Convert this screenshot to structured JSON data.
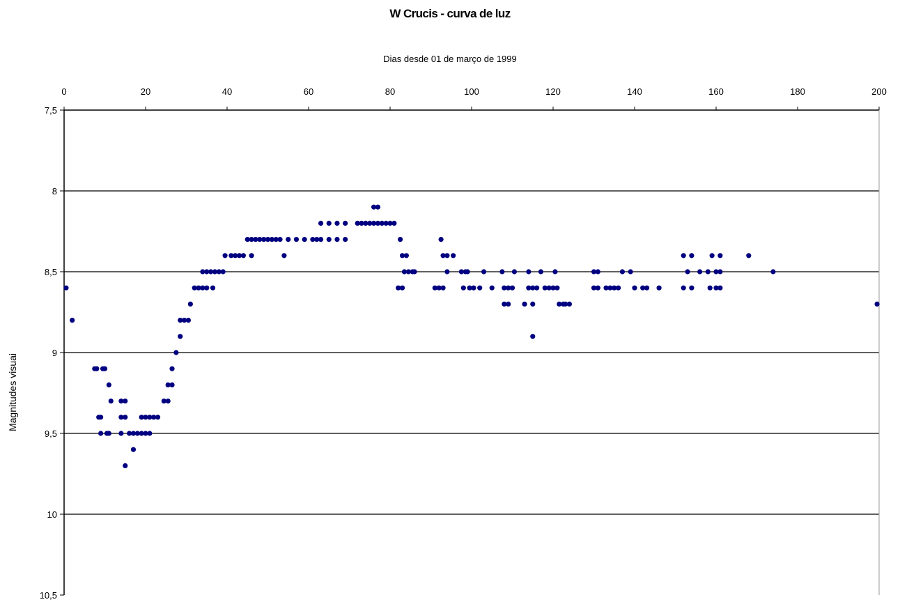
{
  "chart_data": {
    "type": "scatter",
    "title": "W Crucis - curva de luz",
    "xlabel": "Dias desde 01 de março de 1999",
    "ylabel": "Magnitudes visuai",
    "xlim": [
      0,
      200
    ],
    "ylim": [
      7.5,
      10.5
    ],
    "y_inverted": true,
    "x_axis_position": "top",
    "x_ticks": [
      "0",
      "20",
      "40",
      "60",
      "80",
      "100",
      "120",
      "140",
      "160",
      "180",
      "200"
    ],
    "y_ticks": [
      "7,5",
      "8",
      "8,5",
      "9",
      "9,5",
      "10",
      "10,5"
    ],
    "grid": "horizontal",
    "marker_color": "#000080",
    "series": [
      {
        "points": [
          [
            0.5,
            8.6
          ],
          [
            2,
            8.8
          ],
          [
            7.5,
            9.1
          ],
          [
            8,
            9.1
          ],
          [
            9.5,
            9.1
          ],
          [
            10,
            9.1
          ],
          [
            11,
            9.2
          ],
          [
            11.5,
            9.3
          ],
          [
            8.5,
            9.4
          ],
          [
            9,
            9.4
          ],
          [
            9,
            9.5
          ],
          [
            10.5,
            9.5
          ],
          [
            11,
            9.5
          ],
          [
            14,
            9.3
          ],
          [
            15,
            9.3
          ],
          [
            14,
            9.4
          ],
          [
            15,
            9.4
          ],
          [
            14,
            9.5
          ],
          [
            15,
            9.7
          ],
          [
            16,
            9.5
          ],
          [
            17,
            9.5
          ],
          [
            18,
            9.5
          ],
          [
            19,
            9.5
          ],
          [
            20,
            9.5
          ],
          [
            21,
            9.5
          ],
          [
            17,
            9.6
          ],
          [
            19,
            9.4
          ],
          [
            20,
            9.4
          ],
          [
            21,
            9.4
          ],
          [
            22,
            9.4
          ],
          [
            23,
            9.4
          ],
          [
            24.5,
            9.3
          ],
          [
            25.5,
            9.3
          ],
          [
            25.5,
            9.2
          ],
          [
            26.5,
            9.2
          ],
          [
            26.5,
            9.1
          ],
          [
            27.5,
            9.0
          ],
          [
            28.5,
            8.9
          ],
          [
            28.5,
            8.8
          ],
          [
            29.5,
            8.8
          ],
          [
            30.5,
            8.8
          ],
          [
            31,
            8.7
          ],
          [
            32,
            8.6
          ],
          [
            33,
            8.6
          ],
          [
            34,
            8.6
          ],
          [
            35,
            8.6
          ],
          [
            36.5,
            8.6
          ],
          [
            34,
            8.5
          ],
          [
            35,
            8.5
          ],
          [
            36,
            8.5
          ],
          [
            37,
            8.5
          ],
          [
            38,
            8.5
          ],
          [
            39,
            8.5
          ],
          [
            39.5,
            8.4
          ],
          [
            41,
            8.4
          ],
          [
            42,
            8.4
          ],
          [
            43,
            8.4
          ],
          [
            44,
            8.4
          ],
          [
            46,
            8.4
          ],
          [
            45,
            8.3
          ],
          [
            46,
            8.3
          ],
          [
            47,
            8.3
          ],
          [
            48,
            8.3
          ],
          [
            49,
            8.3
          ],
          [
            50,
            8.3
          ],
          [
            51,
            8.3
          ],
          [
            52,
            8.3
          ],
          [
            53,
            8.3
          ],
          [
            54,
            8.4
          ],
          [
            55,
            8.3
          ],
          [
            57,
            8.3
          ],
          [
            59,
            8.3
          ],
          [
            61,
            8.3
          ],
          [
            62,
            8.3
          ],
          [
            63,
            8.3
          ],
          [
            65,
            8.3
          ],
          [
            67,
            8.3
          ],
          [
            69,
            8.3
          ],
          [
            63,
            8.2
          ],
          [
            65,
            8.2
          ],
          [
            67,
            8.2
          ],
          [
            69,
            8.2
          ],
          [
            72,
            8.2
          ],
          [
            73,
            8.2
          ],
          [
            74,
            8.2
          ],
          [
            75,
            8.2
          ],
          [
            76,
            8.2
          ],
          [
            77,
            8.2
          ],
          [
            78,
            8.2
          ],
          [
            79,
            8.2
          ],
          [
            80,
            8.2
          ],
          [
            81,
            8.2
          ],
          [
            76,
            8.1
          ],
          [
            77,
            8.1
          ],
          [
            82.5,
            8.3
          ],
          [
            83,
            8.4
          ],
          [
            84,
            8.4
          ],
          [
            83.5,
            8.5
          ],
          [
            84.5,
            8.5
          ],
          [
            85.5,
            8.5
          ],
          [
            86,
            8.5
          ],
          [
            82,
            8.6
          ],
          [
            83,
            8.6
          ],
          [
            92.5,
            8.3
          ],
          [
            93,
            8.4
          ],
          [
            94,
            8.4
          ],
          [
            95.5,
            8.4
          ],
          [
            94,
            8.5
          ],
          [
            91,
            8.6
          ],
          [
            92,
            8.6
          ],
          [
            93,
            8.6
          ],
          [
            97.5,
            8.5
          ],
          [
            98.5,
            8.5
          ],
          [
            99,
            8.5
          ],
          [
            103,
            8.5
          ],
          [
            98,
            8.6
          ],
          [
            99.5,
            8.6
          ],
          [
            100.5,
            8.6
          ],
          [
            102,
            8.6
          ],
          [
            105,
            8.6
          ],
          [
            107.5,
            8.5
          ],
          [
            110.5,
            8.5
          ],
          [
            114,
            8.5
          ],
          [
            117,
            8.5
          ],
          [
            120.5,
            8.5
          ],
          [
            108,
            8.6
          ],
          [
            109,
            8.6
          ],
          [
            110,
            8.6
          ],
          [
            114,
            8.6
          ],
          [
            115,
            8.6
          ],
          [
            116,
            8.6
          ],
          [
            118,
            8.6
          ],
          [
            119,
            8.6
          ],
          [
            120,
            8.6
          ],
          [
            121,
            8.6
          ],
          [
            108,
            8.7
          ],
          [
            109,
            8.7
          ],
          [
            113,
            8.7
          ],
          [
            115,
            8.7
          ],
          [
            115,
            8.9
          ],
          [
            121.5,
            8.7
          ],
          [
            122.5,
            8.7
          ],
          [
            123,
            8.7
          ],
          [
            124,
            8.7
          ],
          [
            130,
            8.5
          ],
          [
            131,
            8.5
          ],
          [
            137,
            8.5
          ],
          [
            139,
            8.5
          ],
          [
            130,
            8.6
          ],
          [
            131,
            8.6
          ],
          [
            133,
            8.6
          ],
          [
            134,
            8.6
          ],
          [
            135,
            8.6
          ],
          [
            136,
            8.6
          ],
          [
            140,
            8.6
          ],
          [
            142,
            8.6
          ],
          [
            143,
            8.6
          ],
          [
            146,
            8.6
          ],
          [
            152,
            8.4
          ],
          [
            154,
            8.4
          ],
          [
            153,
            8.5
          ],
          [
            156,
            8.5
          ],
          [
            158,
            8.5
          ],
          [
            152,
            8.6
          ],
          [
            154,
            8.6
          ],
          [
            159,
            8.4
          ],
          [
            161,
            8.4
          ],
          [
            160,
            8.5
          ],
          [
            161,
            8.5
          ],
          [
            158.5,
            8.6
          ],
          [
            160,
            8.6
          ],
          [
            161,
            8.6
          ],
          [
            168,
            8.4
          ],
          [
            174,
            8.5
          ],
          [
            199.5,
            8.7
          ]
        ]
      }
    ]
  }
}
